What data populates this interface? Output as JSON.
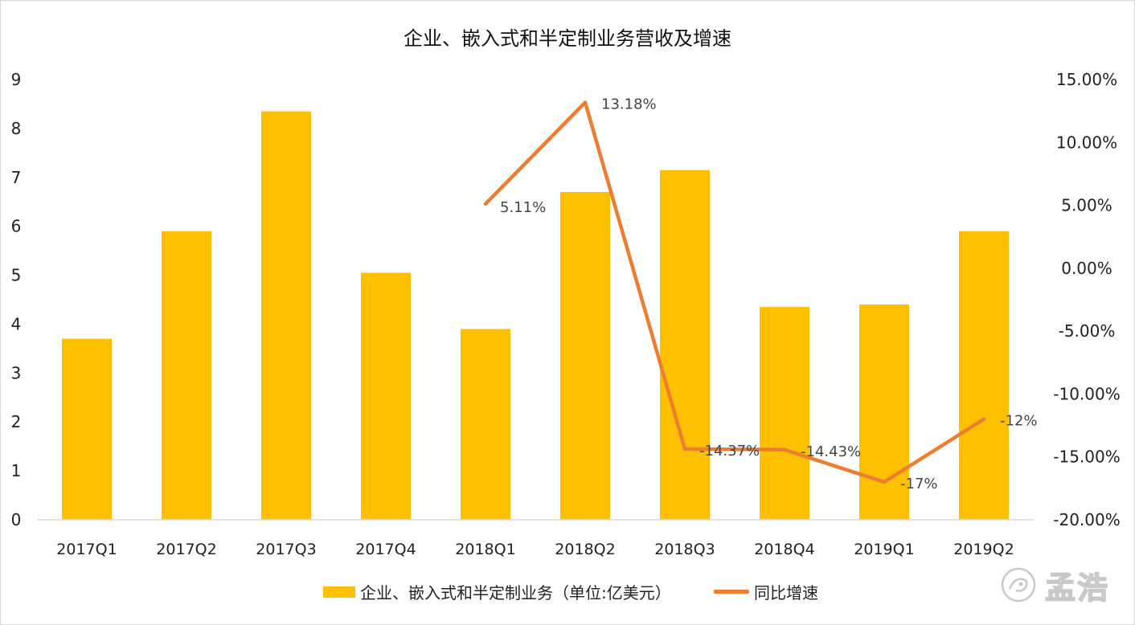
{
  "chart_data": {
    "type": "bar+line",
    "title": "企业、嵌入式和半定制业务营收及增速",
    "categories": [
      "2017Q1",
      "2017Q2",
      "2017Q3",
      "2017Q4",
      "2018Q1",
      "2018Q2",
      "2018Q3",
      "2018Q4",
      "2019Q1",
      "2019Q2"
    ],
    "series": [
      {
        "name": "企业、嵌入式和半定制业务（单位:亿美元）",
        "type": "bar",
        "axis": "left",
        "color": "#FFC000",
        "values": [
          3.7,
          5.9,
          8.35,
          5.05,
          3.9,
          6.7,
          7.15,
          4.35,
          4.4,
          5.9
        ]
      },
      {
        "name": "同比增速",
        "type": "line",
        "axis": "right",
        "color": "#ED7D31",
        "values": [
          null,
          null,
          null,
          null,
          5.11,
          13.18,
          -14.37,
          -14.43,
          -17,
          -12
        ],
        "labels": [
          null,
          null,
          null,
          null,
          "5.11%",
          "13.18%",
          "-14.37%",
          "-14.43%",
          "-17%",
          "-12%"
        ]
      }
    ],
    "left_axis": {
      "min": 0,
      "max": 9,
      "step": 1,
      "ticks": [
        "0",
        "1",
        "2",
        "3",
        "4",
        "5",
        "6",
        "7",
        "8",
        "9"
      ]
    },
    "right_axis": {
      "min": -20,
      "max": 15,
      "step": 5,
      "ticks": [
        "-20.00%",
        "-15.00%",
        "-10.00%",
        "-5.00%",
        "0.00%",
        "5.00%",
        "10.00%",
        "15.00%"
      ]
    },
    "grid": false,
    "legend": "bottom-center"
  },
  "legend": {
    "bar_label": "企业、嵌入式和半定制业务（单位:亿美元）",
    "line_label": "同比增速"
  },
  "watermark": {
    "text": "孟浩"
  }
}
